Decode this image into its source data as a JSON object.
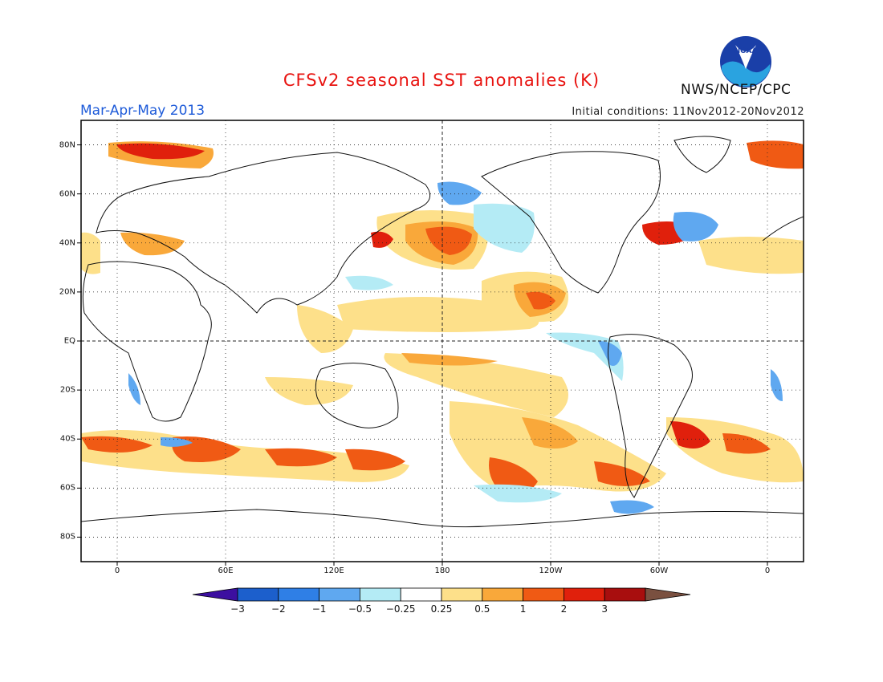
{
  "title": "CFSv2 seasonal SST anomalies (K)",
  "period": "Mar-Apr-May 2013",
  "initial_conditions": "Initial conditions: 11Nov2012-20Nov2012",
  "agency": "NWS/NCEP/CPC",
  "logo": {
    "icon": "noaa-logo",
    "text": "NOAA"
  },
  "map": {
    "projection": "cylindrical-equidistant",
    "central_longitude": 180,
    "lon_range": [
      -20,
      380
    ],
    "lat_range": [
      -90,
      90
    ],
    "lon_ticks": [
      {
        "value": 0,
        "label": "0"
      },
      {
        "value": 60,
        "label": "60E"
      },
      {
        "value": 120,
        "label": "120E"
      },
      {
        "value": 180,
        "label": "180"
      },
      {
        "value": 240,
        "label": "120W"
      },
      {
        "value": 300,
        "label": "60W"
      },
      {
        "value": 360,
        "label": "0"
      }
    ],
    "lat_ticks": [
      {
        "value": 80,
        "label": "80N"
      },
      {
        "value": 60,
        "label": "60N"
      },
      {
        "value": 40,
        "label": "40N"
      },
      {
        "value": 20,
        "label": "20N"
      },
      {
        "value": 0,
        "label": "EQ"
      },
      {
        "value": -20,
        "label": "20S"
      },
      {
        "value": -40,
        "label": "40S"
      },
      {
        "value": -60,
        "label": "60S"
      },
      {
        "value": -80,
        "label": "80S"
      }
    ],
    "grid": "dotted, every 20 degrees; dashed equator and 180 meridian"
  },
  "colorbar": {
    "levels": [
      "-3",
      "-2",
      "-1",
      "-0.5",
      "-0.25",
      "0.25",
      "0.5",
      "1",
      "2",
      "3"
    ],
    "colors": [
      "#3c0fa0",
      "#1c5fcc",
      "#2f7fe6",
      "#5fa8f0",
      "#b4ebf5",
      "#ffffff",
      "#fde08a",
      "#f9a83a",
      "#f05a14",
      "#e0200c",
      "#a80e0e",
      "#7a5040"
    ]
  }
}
